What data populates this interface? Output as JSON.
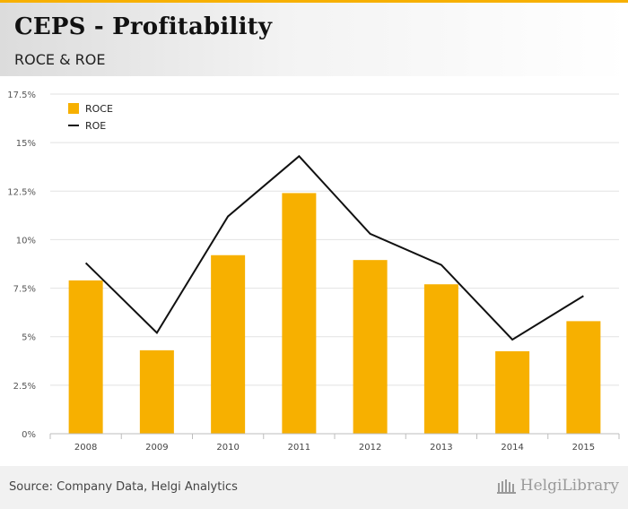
{
  "header": {
    "title": "CEPS - Profitability",
    "subtitle": "ROCE & ROE"
  },
  "footer": {
    "source": "Source: Company Data, Helgi Analytics",
    "brand": "HelgiLibrary"
  },
  "colors": {
    "accent": "#f7b000",
    "roce_bar": "#f7b000",
    "roe_line": "#111111",
    "grid": "#e2e2e2"
  },
  "chart_data": {
    "type": "bar",
    "categories": [
      "2008",
      "2009",
      "2010",
      "2011",
      "2012",
      "2013",
      "2014",
      "2015"
    ],
    "series": [
      {
        "name": "ROCE",
        "type": "bar",
        "values": [
          7.9,
          4.3,
          9.2,
          12.4,
          8.95,
          7.7,
          4.25,
          5.8
        ]
      },
      {
        "name": "ROE",
        "type": "line",
        "values": [
          8.8,
          5.2,
          11.2,
          14.3,
          10.3,
          8.7,
          4.85,
          7.1
        ]
      }
    ],
    "ylim": [
      0,
      17.5
    ],
    "yticks": [
      0,
      2.5,
      5,
      7.5,
      10,
      12.5,
      15,
      17.5
    ],
    "ytick_labels": [
      "0%",
      "2.5%",
      "5%",
      "7.5%",
      "10%",
      "12.5%",
      "15%",
      "17.5%"
    ],
    "legend_position": "top-left",
    "grid": true
  }
}
